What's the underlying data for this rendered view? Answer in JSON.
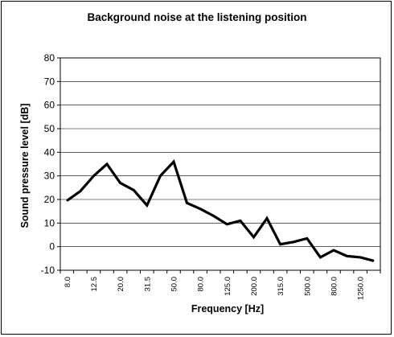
{
  "chart_data": {
    "type": "line",
    "title": "Background noise at the listening position",
    "xlabel": "Frequency [Hz]",
    "ylabel": "Sound pressure level [dB]",
    "ylim": [
      -10,
      80
    ],
    "yticks": [
      -10,
      0,
      10,
      20,
      30,
      40,
      50,
      60,
      70,
      80
    ],
    "grid": true,
    "legend": "none",
    "x_tick_labels": [
      "8.0",
      "12.5",
      "20.0",
      "31.5",
      "50.0",
      "80.0",
      "125.0",
      "200.0",
      "315.0",
      "500.0",
      "800.0",
      "1250.0"
    ],
    "x": [
      "8.0",
      "10.0",
      "12.5",
      "16.0",
      "20.0",
      "25.0",
      "31.5",
      "40.0",
      "50.0",
      "63.0",
      "80.0",
      "100.0",
      "125.0",
      "160.0",
      "200.0",
      "250.0",
      "315.0",
      "400.0",
      "500.0",
      "630.0",
      "800.0",
      "1000.0",
      "1250.0",
      "1600.0"
    ],
    "series": [
      {
        "values": [
          19.5,
          23.5,
          30,
          35,
          27,
          24,
          17.5,
          30,
          36,
          18.5,
          16,
          13,
          9.5,
          11,
          4,
          12,
          1,
          2,
          3.5,
          -4.5,
          -1.5,
          -4,
          -4.5,
          -6
        ],
        "color": "#000000"
      }
    ]
  }
}
